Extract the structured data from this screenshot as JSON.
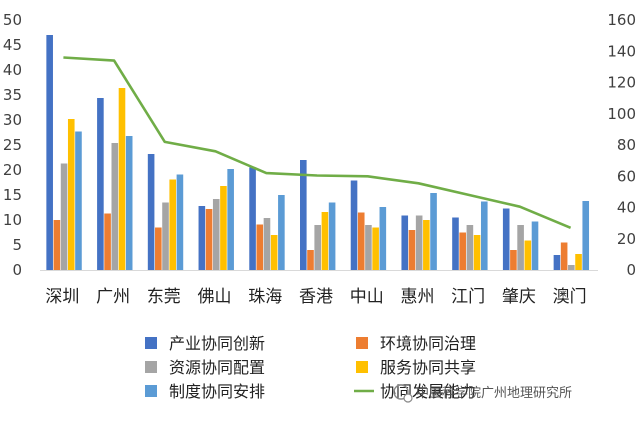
{
  "chart_data": {
    "type": "bar",
    "title": "",
    "xlabel": "",
    "ylabel": "",
    "categories": [
      "深圳",
      "广州",
      "东莞",
      "佛山",
      "珠海",
      "香港",
      "中山",
      "惠州",
      "江门",
      "肇庆",
      "澳门"
    ],
    "ylim": [
      0,
      50
    ],
    "y_ticks": [
      0,
      5,
      10,
      15,
      20,
      25,
      30,
      35,
      40,
      45,
      50
    ],
    "y2lim": [
      0,
      160
    ],
    "y2_ticks": [
      0,
      20,
      40,
      60,
      80,
      100,
      120,
      140,
      160
    ],
    "series": [
      {
        "name": "产业协同创新",
        "color": "#4472c4",
        "values": [
          47.0,
          34.4,
          23.2,
          12.8,
          20.5,
          22.0,
          17.9,
          10.9,
          10.5,
          12.3,
          3.0
        ]
      },
      {
        "name": "环境协同治理",
        "color": "#ed7d31",
        "values": [
          10.0,
          11.3,
          8.5,
          12.2,
          9.1,
          4.0,
          11.5,
          8.0,
          7.5,
          4.0,
          5.5
        ]
      },
      {
        "name": "资源协同配置",
        "color": "#a5a5a5",
        "values": [
          21.3,
          25.4,
          13.5,
          14.2,
          10.4,
          9.0,
          9.0,
          10.9,
          9.0,
          9.0,
          1.0
        ]
      },
      {
        "name": "服务协同共享",
        "color": "#ffc000",
        "values": [
          30.2,
          36.4,
          18.1,
          16.8,
          7.0,
          11.6,
          8.5,
          10.0,
          7.0,
          5.9,
          3.2
        ]
      },
      {
        "name": "制度协同安排",
        "color": "#5b9bd5",
        "values": [
          27.7,
          26.8,
          19.1,
          20.2,
          15.0,
          13.5,
          12.6,
          15.4,
          13.7,
          9.7,
          13.8
        ]
      }
    ],
    "line_series": {
      "name": "协同发展能力",
      "color": "#70ad47",
      "axis": "right",
      "values": [
        136,
        134,
        82,
        76,
        62,
        60.5,
        60,
        55.5,
        48,
        40.5,
        27
      ]
    },
    "legend_position": "bottom"
  },
  "watermark": {
    "text": "中国科学院广州地理研究所"
  }
}
